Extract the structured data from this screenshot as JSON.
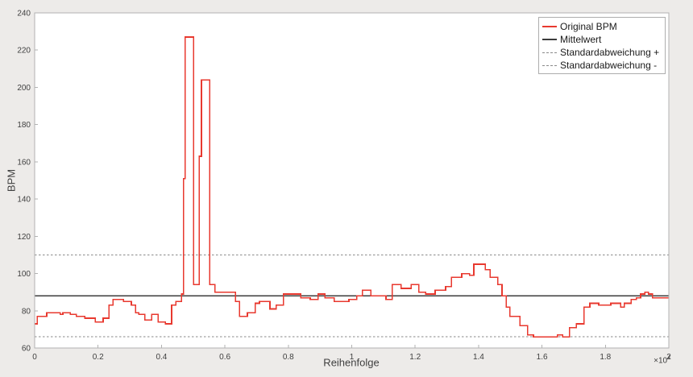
{
  "window": {
    "background": "#edebe9"
  },
  "chart_data": {
    "type": "line",
    "subtype": "stairs",
    "title": "",
    "xlabel": "Reihenfolge",
    "ylabel": "BPM",
    "grid": false,
    "colors": {
      "plot_bg": "#ffffff",
      "axis_line": "#b2b2b2",
      "tick_text": "#3f3f3f",
      "series_red": "#e8392f",
      "mean_line": "#3c3c3c",
      "std_line": "#8a8a8a"
    },
    "x_axis": {
      "min": 0,
      "max": 20000,
      "tick_labels": [
        "0",
        "0.2",
        "0.4",
        "0.6",
        "0.8",
        "1",
        "1.2",
        "1.4",
        "1.6",
        "1.8",
        "2"
      ],
      "multiplier_base": "×10",
      "multiplier_exp": "4"
    },
    "y_axis": {
      "min": 60,
      "max": 240,
      "tick_labels": [
        "60",
        "80",
        "100",
        "120",
        "140",
        "160",
        "180",
        "200",
        "220",
        "240"
      ]
    },
    "legend": {
      "position": "top-right",
      "entries": [
        {
          "label": "Original BPM",
          "color": "#e8392f",
          "style": "solid"
        },
        {
          "label": "Mittelwert",
          "color": "#3c3c3c",
          "style": "solid"
        },
        {
          "label": "Standardabweichung +",
          "color": "#8a8a8a",
          "style": "dashed"
        },
        {
          "label": "Standardabweichung -",
          "color": "#8a8a8a",
          "style": "dashed"
        }
      ]
    },
    "reference_lines": [
      {
        "name": "Mittelwert",
        "value": 88,
        "color": "#3c3c3c",
        "style": "solid"
      },
      {
        "name": "Standardabweichung +",
        "value": 110,
        "color": "#8a8a8a",
        "style": "dashed"
      },
      {
        "name": "Standardabweichung -",
        "value": 66,
        "color": "#8a8a8a",
        "style": "dashed"
      }
    ],
    "series": [
      {
        "name": "Original BPM",
        "color": "#e8392f",
        "style": "solid",
        "points": [
          [
            0,
            73
          ],
          [
            80,
            77
          ],
          [
            380,
            79
          ],
          [
            810,
            78
          ],
          [
            890,
            79
          ],
          [
            1120,
            78
          ],
          [
            1320,
            77
          ],
          [
            1580,
            76
          ],
          [
            1910,
            74
          ],
          [
            2160,
            76
          ],
          [
            2340,
            83
          ],
          [
            2470,
            86
          ],
          [
            2800,
            85
          ],
          [
            3050,
            83
          ],
          [
            3180,
            79
          ],
          [
            3280,
            78
          ],
          [
            3480,
            75
          ],
          [
            3690,
            78
          ],
          [
            3890,
            74
          ],
          [
            4120,
            73
          ],
          [
            4320,
            83
          ],
          [
            4450,
            85
          ],
          [
            4630,
            89
          ],
          [
            4700,
            151
          ],
          [
            4750,
            227
          ],
          [
            5010,
            94
          ],
          [
            5190,
            163
          ],
          [
            5260,
            204
          ],
          [
            5520,
            94
          ],
          [
            5690,
            90
          ],
          [
            6330,
            85
          ],
          [
            6460,
            77
          ],
          [
            6710,
            79
          ],
          [
            6960,
            84
          ],
          [
            7090,
            85
          ],
          [
            7420,
            81
          ],
          [
            7620,
            83
          ],
          [
            7850,
            89
          ],
          [
            8390,
            87
          ],
          [
            8690,
            86
          ],
          [
            8940,
            89
          ],
          [
            9150,
            87
          ],
          [
            9450,
            85
          ],
          [
            9910,
            86
          ],
          [
            10160,
            88
          ],
          [
            10340,
            91
          ],
          [
            10600,
            88
          ],
          [
            11080,
            86
          ],
          [
            11280,
            94
          ],
          [
            11560,
            92
          ],
          [
            11870,
            94
          ],
          [
            12120,
            90
          ],
          [
            12330,
            89
          ],
          [
            12630,
            91
          ],
          [
            12960,
            93
          ],
          [
            13140,
            98
          ],
          [
            13470,
            100
          ],
          [
            13720,
            99
          ],
          [
            13850,
            105
          ],
          [
            14210,
            102
          ],
          [
            14360,
            98
          ],
          [
            14610,
            94
          ],
          [
            14740,
            88
          ],
          [
            14870,
            82
          ],
          [
            14990,
            77
          ],
          [
            15300,
            72
          ],
          [
            15550,
            67
          ],
          [
            15730,
            66
          ],
          [
            16490,
            67
          ],
          [
            16650,
            66
          ],
          [
            16870,
            71
          ],
          [
            17080,
            73
          ],
          [
            17330,
            82
          ],
          [
            17510,
            84
          ],
          [
            17790,
            83
          ],
          [
            18170,
            84
          ],
          [
            18480,
            82
          ],
          [
            18600,
            84
          ],
          [
            18810,
            86
          ],
          [
            18980,
            87
          ],
          [
            19110,
            89
          ],
          [
            19240,
            90
          ],
          [
            19360,
            89
          ],
          [
            19490,
            87
          ],
          [
            19620,
            87
          ]
        ]
      }
    ]
  }
}
